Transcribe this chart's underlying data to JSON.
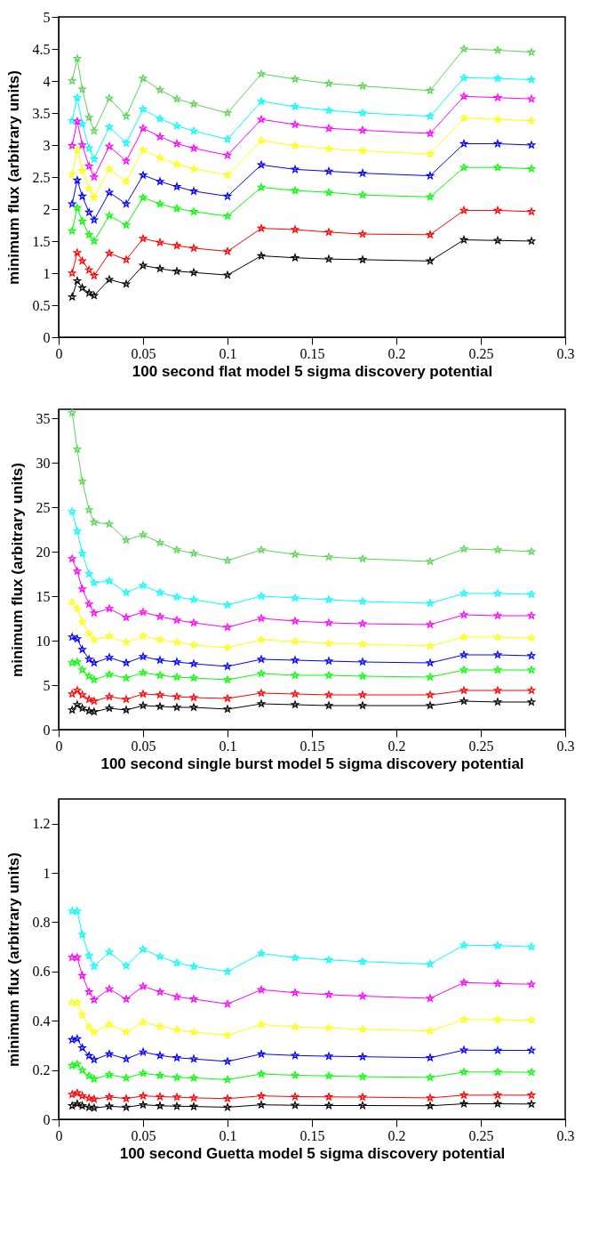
{
  "chart_data": [
    {
      "type": "line",
      "xlabel": "100 second flat model 5 sigma discovery potential",
      "ylabel": "minimum flux (arbitrary units)",
      "marker": "star",
      "line_style": "solid",
      "grid": false,
      "legend": false,
      "x": [
        0.008,
        0.011,
        0.014,
        0.018,
        0.021,
        0.03,
        0.04,
        0.05,
        0.06,
        0.07,
        0.08,
        0.1,
        0.12,
        0.14,
        0.16,
        0.18,
        0.22,
        0.24,
        0.26,
        0.28
      ],
      "xlim": [
        0,
        0.3
      ],
      "xticks": [
        0,
        0.05,
        0.1,
        0.15,
        0.2,
        0.25,
        0.3
      ],
      "ylim": [
        0,
        5
      ],
      "yticks": [
        0,
        0.5,
        1,
        1.5,
        2,
        2.5,
        3,
        3.5,
        4,
        4.5,
        5
      ],
      "series": [
        {
          "color": "#59d454",
          "values": [
            4.0,
            4.35,
            3.87,
            3.43,
            3.22,
            3.73,
            3.45,
            4.04,
            3.86,
            3.72,
            3.64,
            3.5,
            4.11,
            4.03,
            3.96,
            3.92,
            3.85,
            4.5,
            4.48,
            4.45
          ]
        },
        {
          "color": "#00ffff",
          "values": [
            3.38,
            3.74,
            3.33,
            2.95,
            2.78,
            3.28,
            3.03,
            3.56,
            3.41,
            3.3,
            3.22,
            3.09,
            3.68,
            3.6,
            3.54,
            3.5,
            3.45,
            4.05,
            4.04,
            4.02
          ]
        },
        {
          "color": "#ff00ff",
          "values": [
            2.99,
            3.37,
            3.0,
            2.67,
            2.5,
            2.98,
            2.75,
            3.26,
            3.13,
            3.02,
            2.95,
            2.84,
            3.4,
            3.32,
            3.26,
            3.23,
            3.18,
            3.76,
            3.74,
            3.72
          ]
        },
        {
          "color": "#ffff00",
          "values": [
            2.54,
            2.92,
            2.6,
            2.32,
            2.18,
            2.63,
            2.43,
            2.92,
            2.8,
            2.7,
            2.63,
            2.53,
            3.07,
            2.99,
            2.94,
            2.91,
            2.86,
            3.42,
            3.4,
            3.38
          ]
        },
        {
          "color": "#0000ff",
          "values": [
            2.08,
            2.45,
            2.2,
            1.95,
            1.83,
            2.26,
            2.08,
            2.53,
            2.43,
            2.35,
            2.28,
            2.2,
            2.69,
            2.62,
            2.59,
            2.56,
            2.52,
            3.02,
            3.02,
            3.0
          ]
        },
        {
          "color": "#00ff00",
          "values": [
            1.66,
            2.02,
            1.81,
            1.6,
            1.5,
            1.9,
            1.75,
            2.18,
            2.08,
            2.01,
            1.96,
            1.89,
            2.34,
            2.29,
            2.26,
            2.22,
            2.19,
            2.65,
            2.65,
            2.63
          ]
        },
        {
          "color": "#ff0000",
          "values": [
            1.0,
            1.32,
            1.19,
            1.05,
            0.96,
            1.31,
            1.21,
            1.54,
            1.48,
            1.43,
            1.39,
            1.34,
            1.7,
            1.68,
            1.64,
            1.61,
            1.6,
            1.98,
            1.98,
            1.96
          ]
        },
        {
          "color": "#000000",
          "values": [
            0.63,
            0.88,
            0.77,
            0.69,
            0.65,
            0.9,
            0.83,
            1.12,
            1.07,
            1.03,
            1.01,
            0.97,
            1.27,
            1.24,
            1.22,
            1.21,
            1.19,
            1.52,
            1.51,
            1.5
          ]
        }
      ]
    },
    {
      "type": "line",
      "xlabel": "100 second single burst model 5 sigma discovery potential",
      "ylabel": "minimum flux (arbitrary units)",
      "marker": "star",
      "line_style": "solid",
      "grid": false,
      "legend": false,
      "x": [
        0.008,
        0.011,
        0.014,
        0.018,
        0.021,
        0.03,
        0.04,
        0.05,
        0.06,
        0.07,
        0.08,
        0.1,
        0.12,
        0.14,
        0.16,
        0.18,
        0.22,
        0.24,
        0.26,
        0.28
      ],
      "xlim": [
        0,
        0.3
      ],
      "xticks": [
        0,
        0.05,
        0.1,
        0.15,
        0.2,
        0.25,
        0.3
      ],
      "ylim": [
        0,
        36
      ],
      "yticks": [
        0,
        5,
        10,
        15,
        20,
        25,
        30,
        35
      ],
      "series": [
        {
          "color": "#59d454",
          "values": [
            35.6,
            31.5,
            27.9,
            24.7,
            23.3,
            23.1,
            21.3,
            21.9,
            21.0,
            20.2,
            19.8,
            19.0,
            20.2,
            19.7,
            19.4,
            19.2,
            18.9,
            20.3,
            20.2,
            20.0
          ]
        },
        {
          "color": "#00ffff",
          "values": [
            24.5,
            22.3,
            19.8,
            17.5,
            16.5,
            16.7,
            15.4,
            16.2,
            15.4,
            14.9,
            14.6,
            14.0,
            15.0,
            14.8,
            14.6,
            14.4,
            14.2,
            15.3,
            15.3,
            15.2
          ]
        },
        {
          "color": "#ff00ff",
          "values": [
            19.2,
            17.8,
            15.8,
            14.1,
            13.1,
            13.6,
            12.6,
            13.2,
            12.7,
            12.3,
            12.0,
            11.5,
            12.5,
            12.2,
            12.0,
            11.9,
            11.8,
            12.9,
            12.8,
            12.8
          ]
        },
        {
          "color": "#ffff00",
          "values": [
            14.3,
            13.6,
            12.1,
            10.8,
            10.1,
            10.5,
            9.8,
            10.5,
            10.1,
            9.8,
            9.5,
            9.2,
            10.1,
            9.9,
            9.7,
            9.6,
            9.4,
            10.4,
            10.4,
            10.3
          ]
        },
        {
          "color": "#0000ff",
          "values": [
            10.4,
            10.2,
            9.0,
            7.9,
            7.5,
            8.1,
            7.5,
            8.2,
            7.8,
            7.6,
            7.4,
            7.1,
            7.9,
            7.8,
            7.7,
            7.6,
            7.5,
            8.4,
            8.4,
            8.3
          ]
        },
        {
          "color": "#00ff00",
          "values": [
            7.5,
            7.6,
            6.7,
            6.0,
            5.6,
            6.2,
            5.8,
            6.4,
            6.1,
            5.9,
            5.8,
            5.6,
            6.3,
            6.1,
            6.1,
            6.0,
            5.9,
            6.7,
            6.7,
            6.7
          ]
        },
        {
          "color": "#ff0000",
          "values": [
            4.0,
            4.4,
            3.9,
            3.4,
            3.2,
            3.7,
            3.4,
            4.0,
            3.9,
            3.7,
            3.6,
            3.5,
            4.1,
            4.0,
            3.9,
            3.9,
            3.9,
            4.4,
            4.4,
            4.4
          ]
        },
        {
          "color": "#000000",
          "values": [
            2.2,
            2.8,
            2.4,
            2.1,
            2.0,
            2.4,
            2.2,
            2.7,
            2.6,
            2.5,
            2.5,
            2.3,
            2.9,
            2.8,
            2.7,
            2.7,
            2.7,
            3.2,
            3.1,
            3.1
          ]
        }
      ]
    },
    {
      "type": "line",
      "xlabel": "100 second Guetta model 5 sigma discovery potential",
      "ylabel": "minimum flux (arbitrary units)",
      "marker": "star",
      "line_style": "solid",
      "grid": false,
      "legend": false,
      "x": [
        0.008,
        0.011,
        0.014,
        0.018,
        0.021,
        0.03,
        0.04,
        0.05,
        0.06,
        0.07,
        0.08,
        0.1,
        0.12,
        0.14,
        0.16,
        0.18,
        0.22,
        0.24,
        0.26,
        0.28
      ],
      "xlim": [
        0,
        0.3
      ],
      "xticks": [
        0,
        0.05,
        0.1,
        0.15,
        0.2,
        0.25,
        0.3
      ],
      "ylim": [
        0,
        1.3
      ],
      "yticks": [
        0,
        0.2,
        0.4,
        0.6,
        0.8,
        1,
        1.2
      ],
      "series": [
        {
          "color": "#00ffff",
          "values": [
            0.845,
            0.845,
            0.75,
            0.664,
            0.621,
            0.679,
            0.623,
            0.69,
            0.66,
            0.635,
            0.62,
            0.6,
            0.673,
            0.656,
            0.647,
            0.64,
            0.63,
            0.707,
            0.705,
            0.7
          ]
        },
        {
          "color": "#ff00ff",
          "values": [
            0.657,
            0.657,
            0.583,
            0.517,
            0.485,
            0.529,
            0.488,
            0.54,
            0.517,
            0.497,
            0.488,
            0.468,
            0.526,
            0.514,
            0.506,
            0.5,
            0.491,
            0.555,
            0.551,
            0.548
          ]
        },
        {
          "color": "#ffff00",
          "values": [
            0.474,
            0.474,
            0.423,
            0.375,
            0.354,
            0.385,
            0.354,
            0.394,
            0.377,
            0.363,
            0.354,
            0.341,
            0.385,
            0.375,
            0.371,
            0.365,
            0.359,
            0.405,
            0.404,
            0.402
          ]
        },
        {
          "color": "#0000ff",
          "values": [
            0.323,
            0.327,
            0.29,
            0.258,
            0.242,
            0.265,
            0.245,
            0.273,
            0.259,
            0.25,
            0.245,
            0.235,
            0.265,
            0.259,
            0.256,
            0.254,
            0.25,
            0.281,
            0.28,
            0.28
          ]
        },
        {
          "color": "#00ff00",
          "values": [
            0.218,
            0.224,
            0.199,
            0.176,
            0.164,
            0.181,
            0.168,
            0.187,
            0.178,
            0.17,
            0.168,
            0.161,
            0.184,
            0.179,
            0.176,
            0.173,
            0.17,
            0.192,
            0.192,
            0.191
          ]
        },
        {
          "color": "#ff0000",
          "values": [
            0.101,
            0.107,
            0.095,
            0.086,
            0.082,
            0.091,
            0.084,
            0.095,
            0.092,
            0.09,
            0.087,
            0.084,
            0.095,
            0.092,
            0.091,
            0.09,
            0.087,
            0.098,
            0.098,
            0.098
          ]
        },
        {
          "color": "#000000",
          "values": [
            0.055,
            0.063,
            0.055,
            0.049,
            0.046,
            0.053,
            0.049,
            0.059,
            0.055,
            0.053,
            0.052,
            0.049,
            0.059,
            0.057,
            0.056,
            0.056,
            0.055,
            0.063,
            0.063,
            0.062
          ]
        }
      ]
    }
  ]
}
